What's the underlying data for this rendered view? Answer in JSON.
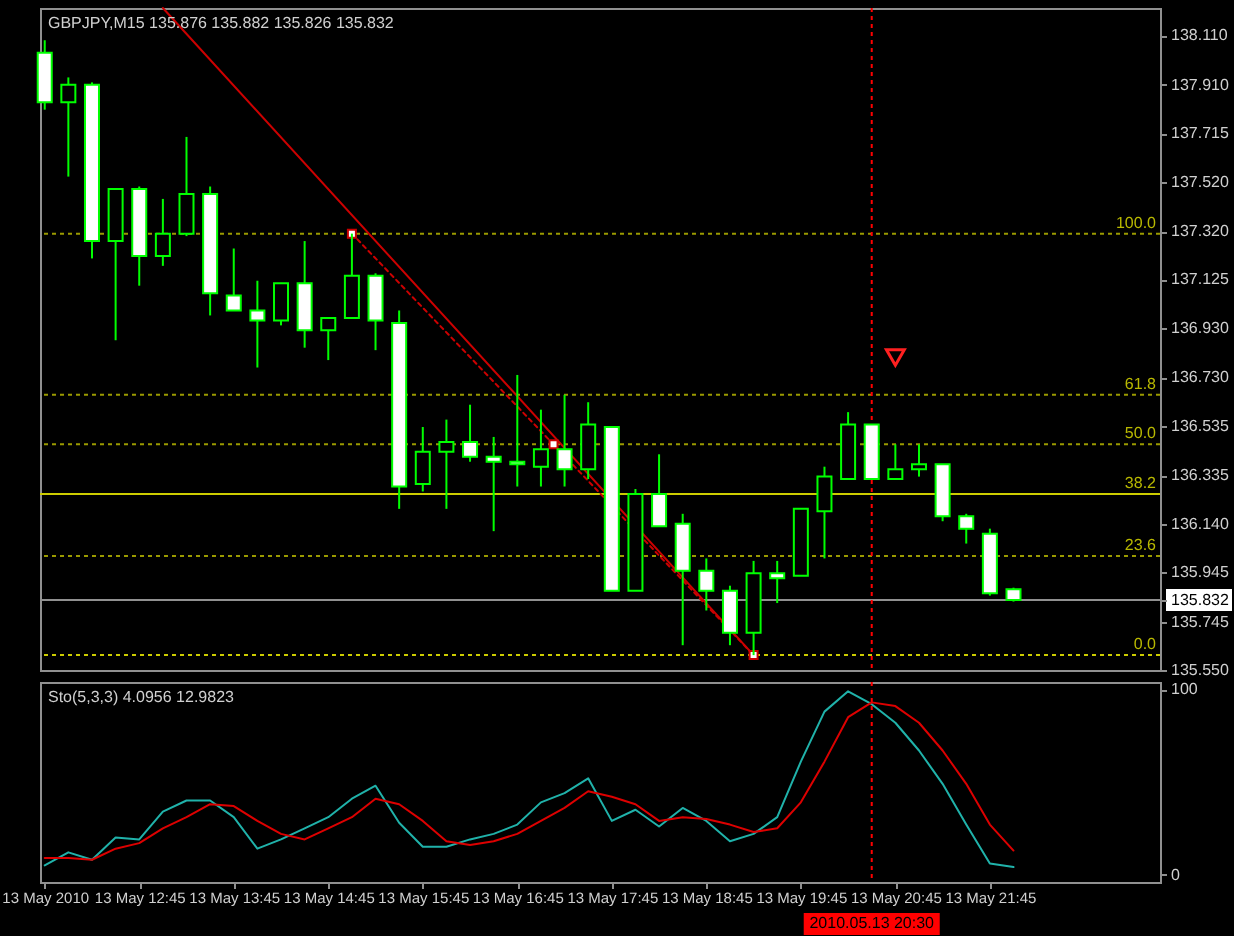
{
  "chart_data": [
    {
      "type": "candlestick",
      "title": "GBPJPY,M15 135.876 135.882 135.826 135.832",
      "x": [
        "2010-05-13T11:45",
        "2010-05-13T12:00",
        "2010-05-13T12:15",
        "2010-05-13T12:30",
        "2010-05-13T12:45",
        "2010-05-13T13:00",
        "2010-05-13T13:15",
        "2010-05-13T13:30",
        "2010-05-13T13:45",
        "2010-05-13T14:00",
        "2010-05-13T14:15",
        "2010-05-13T14:30",
        "2010-05-13T14:45",
        "2010-05-13T15:00",
        "2010-05-13T15:15",
        "2010-05-13T15:30",
        "2010-05-13T15:45",
        "2010-05-13T16:00",
        "2010-05-13T16:15",
        "2010-05-13T16:30",
        "2010-05-13T16:45",
        "2010-05-13T17:00",
        "2010-05-13T17:15",
        "2010-05-13T17:30",
        "2010-05-13T17:45",
        "2010-05-13T18:00",
        "2010-05-13T18:15",
        "2010-05-13T18:30",
        "2010-05-13T18:45",
        "2010-05-13T19:00",
        "2010-05-13T19:15",
        "2010-05-13T19:30",
        "2010-05-13T19:45",
        "2010-05-13T20:00",
        "2010-05-13T20:15",
        "2010-05-13T20:30",
        "2010-05-13T20:45",
        "2010-05-13T21:00",
        "2010-05-13T21:15",
        "2010-05-13T21:30",
        "2010-05-13T21:45",
        "2010-05-13T22:00"
      ],
      "ohlc": [
        [
          138.04,
          138.09,
          137.81,
          137.84
        ],
        [
          137.84,
          137.94,
          137.54,
          137.91
        ],
        [
          137.91,
          137.92,
          137.21,
          137.28
        ],
        [
          137.28,
          137.49,
          136.88,
          137.49
        ],
        [
          137.49,
          137.5,
          137.1,
          137.22
        ],
        [
          137.22,
          137.45,
          137.18,
          137.31
        ],
        [
          137.31,
          137.7,
          137.3,
          137.47
        ],
        [
          137.47,
          137.5,
          136.98,
          137.07
        ],
        [
          137.06,
          137.25,
          137.0,
          137.0
        ],
        [
          137.0,
          137.12,
          136.77,
          136.96
        ],
        [
          136.96,
          137.11,
          136.94,
          137.11
        ],
        [
          137.11,
          137.28,
          136.85,
          136.92
        ],
        [
          136.92,
          136.97,
          136.8,
          136.97
        ],
        [
          136.97,
          137.31,
          136.97,
          137.14
        ],
        [
          137.14,
          137.15,
          136.84,
          136.96
        ],
        [
          136.95,
          137.0,
          136.2,
          136.29
        ],
        [
          136.3,
          136.53,
          136.27,
          136.43
        ],
        [
          136.43,
          136.56,
          136.2,
          136.47
        ],
        [
          136.47,
          136.62,
          136.39,
          136.41
        ],
        [
          136.41,
          136.49,
          136.11,
          136.39
        ],
        [
          136.39,
          136.74,
          136.29,
          136.38
        ],
        [
          136.37,
          136.6,
          136.29,
          136.44
        ],
        [
          136.44,
          136.66,
          136.29,
          136.36
        ],
        [
          136.36,
          136.63,
          136.32,
          136.54
        ],
        [
          136.53,
          136.53,
          135.87,
          135.87
        ],
        [
          135.87,
          136.28,
          135.87,
          136.26
        ],
        [
          136.26,
          136.42,
          136.13,
          136.13
        ],
        [
          136.14,
          136.18,
          135.65,
          135.95
        ],
        [
          135.95,
          136.0,
          135.79,
          135.87
        ],
        [
          135.87,
          135.89,
          135.65,
          135.7
        ],
        [
          135.7,
          135.99,
          135.61,
          135.94
        ],
        [
          135.94,
          135.99,
          135.82,
          135.92
        ],
        [
          135.93,
          136.2,
          135.93,
          136.2
        ],
        [
          136.19,
          136.37,
          136.0,
          136.33
        ],
        [
          136.32,
          136.59,
          136.32,
          136.54
        ],
        [
          136.54,
          136.54,
          136.32,
          136.32
        ],
        [
          136.32,
          136.46,
          136.32,
          136.36
        ],
        [
          136.36,
          136.46,
          136.33,
          136.38
        ],
        [
          136.38,
          136.38,
          136.15,
          136.17
        ],
        [
          136.17,
          136.18,
          136.06,
          136.12
        ],
        [
          136.1,
          136.12,
          135.85,
          135.86
        ],
        [
          135.876,
          135.882,
          135.826,
          135.832
        ]
      ],
      "color": "#00ff00",
      "colors": [
        "#ffffff",
        "#000000",
        "#ffffff",
        "#000000",
        "#ffffff",
        "#000000",
        "#000000",
        "#ffffff",
        "#ffffff",
        "#ffffff",
        "#000000",
        "#ffffff",
        "#000000",
        "#000000",
        "#ffffff",
        "#ffffff",
        "#000000",
        "#000000",
        "#ffffff",
        "#ffffff",
        "#ffffff",
        "#000000",
        "#ffffff",
        "#000000",
        "#ffffff",
        "#000000",
        "#ffffff",
        "#ffffff",
        "#ffffff",
        "#ffffff",
        "#000000",
        "#ffffff",
        "#000000",
        "#000000",
        "#000000",
        "#ffffff",
        "#000000",
        "#000000",
        "#ffffff",
        "#ffffff",
        "#ffffff",
        "#ffffff"
      ],
      "series": [
        {
          "type": "line",
          "x": [
            "2010-05-13T13:00",
            "2010-05-13T19:15"
          ],
          "values": [
            138.22,
            135.61
          ],
          "color": "#cc0000",
          "line_style": "solid"
        },
        {
          "type": "line",
          "x": [
            "2010-05-13T15:00",
            "2010-05-13T17:08",
            "2010-05-13T19:15"
          ],
          "values": [
            137.31,
            136.46,
            135.61
          ],
          "color": "#cc0000",
          "line_style": "dotted",
          "marker": "square"
        },
        {
          "type": "scatter",
          "x": [
            "2010-05-13T20:45"
          ],
          "values": [
            136.81
          ],
          "color": "#ff2020",
          "marker": "triangle"
        }
      ],
      "ylim": [
        135.55,
        138.22
      ],
      "yticks": [
        {
          "value": 138.11,
          "label": "138.110"
        },
        {
          "value": 137.91,
          "label": "137.910"
        },
        137.715,
        {
          "value": 137.52,
          "label": "137.520"
        },
        {
          "value": 137.32,
          "label": "137.320"
        },
        137.125,
        {
          "value": 136.93,
          "label": "136.930"
        },
        {
          "value": 136.73,
          "label": "136.730"
        },
        136.535,
        136.335,
        {
          "value": 136.14,
          "label": "136.140"
        },
        135.945,
        135.832,
        135.745,
        {
          "value": 135.55,
          "label": "135.550"
        }
      ],
      "xlim": [
        "2010-05-13T11:42",
        "2010-05-13T23:33"
      ],
      "tick_labels": "y",
      "ref_lines": [
        {
          "axis": "y",
          "value": 137.31,
          "color": "#9a9a00",
          "line_style": "dotted"
        },
        {
          "axis": "y",
          "value": 136.66,
          "color": "#9a9a00",
          "line_style": "dotted"
        },
        {
          "axis": "y",
          "value": 136.46,
          "color": "#9a9a00",
          "line_style": "dotted"
        },
        {
          "axis": "y",
          "value": 136.26,
          "color": "#cccc00"
        },
        {
          "axis": "y",
          "value": 136.01,
          "color": "#9a9a00",
          "line_style": "dotted"
        },
        {
          "axis": "y",
          "value": 135.61,
          "color": "#cccc00",
          "line_style": "dotted"
        },
        {
          "axis": "y",
          "value": 135.832,
          "color": "#909090"
        },
        {
          "axis": "x",
          "value": "2010-05-13T20:30",
          "color": "#ff0000",
          "line_style": "dotted"
        }
      ],
      "annotations": [
        {
          "text": "100.0",
          "y": 137.31
        },
        {
          "text": "61.8",
          "y": 136.66
        },
        {
          "text": "50.0",
          "y": 136.46
        },
        {
          "text": "38.2",
          "y": 136.26
        },
        {
          "text": "23.6",
          "y": 136.01
        },
        {
          "text": "0.0",
          "y": 135.61
        }
      ]
    },
    {
      "type": "line",
      "title": "Sto(5,3,3) 4.0956 12.9823",
      "x": [
        "2010-05-13T11:45",
        "2010-05-13T12:00",
        "2010-05-13T12:15",
        "2010-05-13T12:30",
        "2010-05-13T12:45",
        "2010-05-13T13:00",
        "2010-05-13T13:15",
        "2010-05-13T13:30",
        "2010-05-13T13:45",
        "2010-05-13T14:00",
        "2010-05-13T14:15",
        "2010-05-13T14:30",
        "2010-05-13T14:45",
        "2010-05-13T15:00",
        "2010-05-13T15:15",
        "2010-05-13T15:30",
        "2010-05-13T15:45",
        "2010-05-13T16:00",
        "2010-05-13T16:15",
        "2010-05-13T16:30",
        "2010-05-13T16:45",
        "2010-05-13T17:00",
        "2010-05-13T17:15",
        "2010-05-13T17:30",
        "2010-05-13T17:45",
        "2010-05-13T18:00",
        "2010-05-13T18:15",
        "2010-05-13T18:30",
        "2010-05-13T18:45",
        "2010-05-13T19:00",
        "2010-05-13T19:15",
        "2010-05-13T19:30",
        "2010-05-13T19:45",
        "2010-05-13T20:00",
        "2010-05-13T20:15",
        "2010-05-13T20:30",
        "2010-05-13T20:45",
        "2010-05-13T21:00",
        "2010-05-13T21:15",
        "2010-05-13T21:30",
        "2010-05-13T21:45",
        "2010-05-13T22:00"
      ],
      "series": [
        {
          "color": "#20b2aa",
          "values": [
            5,
            12,
            8,
            20,
            19,
            34,
            40,
            40,
            31,
            14,
            19,
            25,
            31,
            41,
            48,
            28,
            15,
            15,
            19,
            22,
            27,
            39,
            44,
            52,
            29,
            35,
            26,
            36,
            29,
            18,
            22,
            31,
            61,
            88,
            99,
            92,
            82,
            67,
            49,
            27,
            6,
            4.0956
          ]
        },
        {
          "color": "#dd0000",
          "values": [
            9,
            9,
            8,
            14,
            17,
            25,
            31,
            38,
            37,
            29,
            22,
            19,
            25,
            31,
            41,
            38,
            29,
            18,
            16,
            18,
            22,
            29,
            36,
            45,
            42,
            38,
            29,
            31,
            30,
            27,
            23,
            25,
            39,
            61,
            85,
            93,
            91,
            82,
            67,
            49,
            27,
            12.9823
          ]
        }
      ],
      "ylim": [
        -4,
        104
      ],
      "yticks": [
        0,
        100
      ],
      "xlim": [
        "2010-05-13T11:42",
        "2010-05-13T23:33"
      ],
      "xticks": [
        {
          "value": "2010-05-13T11:45",
          "label": "13 May 2010"
        },
        {
          "value": "2010-05-13T12:45",
          "label": "13 May 12:45"
        },
        {
          "value": "2010-05-13T13:45",
          "label": "13 May 13:45"
        },
        {
          "value": "2010-05-13T14:45",
          "label": "13 May 14:45"
        },
        {
          "value": "2010-05-13T15:45",
          "label": "13 May 15:45"
        },
        {
          "value": "2010-05-13T16:45",
          "label": "13 May 16:45"
        },
        {
          "value": "2010-05-13T17:45",
          "label": "13 May 17:45"
        },
        {
          "value": "2010-05-13T18:45",
          "label": "13 May 18:45"
        },
        {
          "value": "2010-05-13T19:45",
          "label": "13 May 19:45"
        },
        {
          "value": "2010-05-13T20:45",
          "label": "13 May 20:45"
        },
        {
          "value": "2010-05-13T21:45",
          "label": "13 May 21:45"
        }
      ],
      "ref_lines": [
        {
          "axis": "x",
          "value": "2010-05-13T20:30",
          "label": "2010.05.13 20:30",
          "color": "#ff0000",
          "line_style": "dotted"
        }
      ]
    }
  ]
}
